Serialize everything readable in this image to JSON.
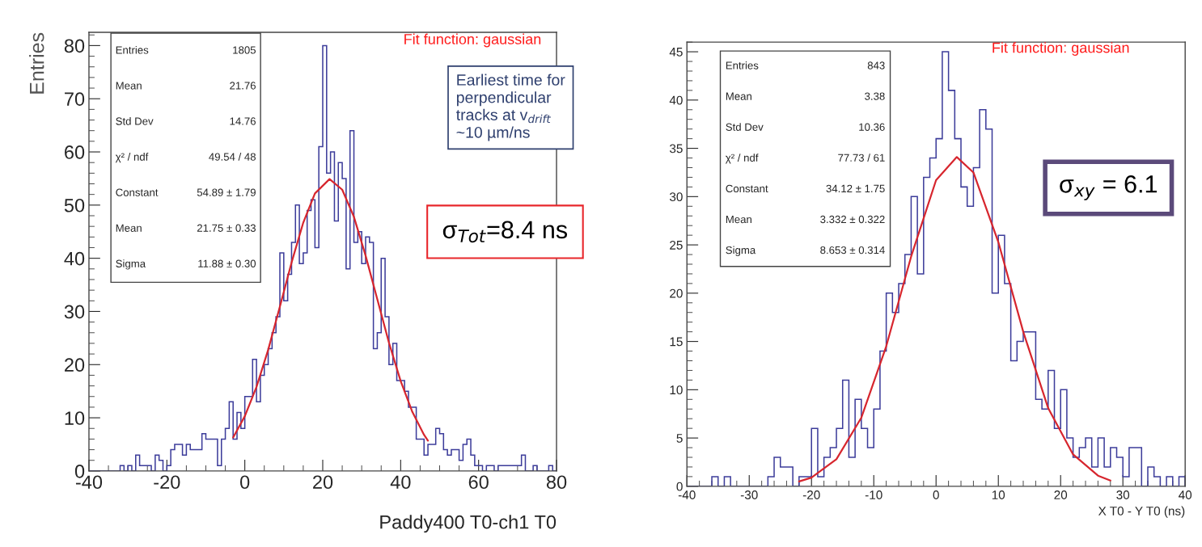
{
  "chart_data": [
    {
      "type": "histogram",
      "ylabel": "Entries",
      "xlabel": "Paddy400 T0-ch1 T0",
      "color": "#3c3c9a",
      "bins": [
        -40,
        -39,
        -38,
        -37,
        -36,
        -35,
        -34,
        -33,
        -32,
        -31,
        -30,
        -29,
        -28,
        -27,
        -26,
        -25,
        -24,
        -23,
        -22,
        -21,
        -20,
        -19,
        -18,
        -17,
        -16,
        -15,
        -14,
        -13,
        -12,
        -11,
        -10,
        -9,
        -8,
        -7,
        -6,
        -5,
        -4,
        -3,
        -2,
        -1,
        0,
        1,
        2,
        3,
        4,
        5,
        6,
        7,
        8,
        9,
        10,
        11,
        12,
        13,
        14,
        15,
        16,
        17,
        18,
        19,
        20,
        21,
        22,
        23,
        24,
        25,
        26,
        27,
        28,
        29,
        30,
        31,
        32,
        33,
        34,
        35,
        36,
        37,
        38,
        39,
        40,
        41,
        42,
        43,
        44,
        45,
        46,
        47,
        48,
        49,
        50,
        51,
        52,
        53,
        54,
        55,
        56,
        57,
        58,
        59,
        60,
        61,
        62,
        63,
        64,
        65,
        66,
        67,
        68,
        69,
        70,
        71,
        72,
        73,
        74,
        75,
        76,
        77,
        78,
        79,
        80
      ],
      "values": [
        0,
        0,
        0,
        0,
        0,
        0,
        0,
        0,
        1,
        0,
        1,
        0,
        3,
        1,
        1,
        1,
        0,
        3,
        2,
        0,
        1,
        4,
        5,
        5,
        3,
        5,
        4,
        4,
        4,
        7,
        6,
        6,
        6,
        1,
        6,
        8,
        13,
        6,
        11,
        8,
        14,
        14,
        21,
        13,
        18,
        20,
        23,
        26,
        29,
        41,
        32,
        37,
        43,
        50,
        39,
        41,
        49,
        51,
        42,
        61,
        80,
        56,
        60,
        47,
        58,
        55,
        38,
        64,
        43,
        45,
        39,
        44,
        43,
        23,
        26,
        40,
        29,
        20,
        24,
        17,
        17,
        15,
        12,
        12,
        6,
        6,
        3,
        5,
        5,
        8,
        7,
        4,
        3,
        4,
        4,
        2,
        5,
        6,
        3,
        1,
        1,
        0,
        1,
        1,
        0,
        1,
        1,
        1,
        1,
        1,
        1,
        3,
        0,
        0,
        1,
        0,
        0,
        0,
        1,
        0
      ],
      "series": [
        {
          "type": "line",
          "color": "#d7262e",
          "x": [
            -3,
            0,
            3,
            6,
            9,
            12,
            15,
            18,
            21.75,
            25,
            28,
            31,
            34,
            37,
            40,
            43,
            46,
            47
          ],
          "values": [
            6.3,
            10.3,
            15.8,
            22.8,
            30.9,
            39.2,
            46.7,
            52.2,
            54.9,
            52.9,
            47.8,
            40.5,
            32.3,
            24.1,
            16.9,
            11.1,
            6.8,
            5.7
          ]
        }
      ],
      "xlim": [
        -40,
        80
      ],
      "ylim": [
        0,
        82.5
      ],
      "xticks": [
        -40,
        -20,
        0,
        20,
        40,
        60,
        80
      ],
      "yticks": [
        0,
        10,
        20,
        30,
        40,
        50,
        60,
        70,
        80
      ],
      "grid": false,
      "annotations": [
        "Fit function: gaussian",
        "Entries",
        "1805",
        "Mean",
        "21.76",
        "Std Dev",
        "14.76",
        "χ² / ndf",
        "49.54 / 48",
        "Constant",
        "54.89 ± 1.79",
        "Mean",
        "21.75 ± 0.33",
        "Sigma",
        "11.88 ± 0.30",
        "Earliest time for\nperpendicular\ntracks at v$_{drift}$\n~10 µm/ns",
        "σ$_{Tot}$=8.4 ns"
      ]
    },
    {
      "type": "histogram",
      "xlabel": "X T0 - Y T0 (ns)",
      "color": "#3c3c9a",
      "bins": [
        -40,
        -39,
        -38,
        -37,
        -36,
        -35,
        -34,
        -33,
        -32,
        -31,
        -30,
        -29,
        -28,
        -27,
        -26,
        -25,
        -24,
        -23,
        -22,
        -21,
        -20,
        -19,
        -18,
        -17,
        -16,
        -15,
        -14,
        -13,
        -12,
        -11,
        -10,
        -9,
        -8,
        -7,
        -6,
        -5,
        -4,
        -3,
        -2,
        -1,
        0,
        1,
        2,
        3,
        4,
        5,
        6,
        7,
        8,
        9,
        10,
        11,
        12,
        13,
        14,
        15,
        16,
        17,
        18,
        19,
        20,
        21,
        22,
        23,
        24,
        25,
        26,
        27,
        28,
        29,
        30,
        31,
        32,
        33,
        34,
        35,
        36,
        37,
        38,
        39,
        40
      ],
      "values": [
        0,
        0,
        0,
        0,
        1,
        0,
        1,
        0,
        0,
        0,
        0,
        0,
        0,
        1,
        3,
        2,
        2,
        0,
        1,
        1,
        6,
        1,
        3,
        4,
        6,
        11,
        3,
        9,
        6,
        4,
        8,
        14,
        20,
        18,
        21,
        24,
        30,
        22,
        32,
        34,
        36,
        45,
        41,
        36,
        31,
        29,
        33,
        39,
        37,
        20,
        26,
        21,
        13,
        15,
        16,
        16,
        9,
        8,
        12,
        6,
        10,
        5,
        3,
        4,
        5,
        2,
        5,
        2,
        4,
        3,
        1,
        4,
        4,
        0,
        2,
        1,
        0,
        1,
        0,
        1
      ],
      "series": [
        {
          "type": "line",
          "color": "#d7262e",
          "x": [
            -22,
            -20,
            -16,
            -12,
            -8,
            -4,
            0,
            3.332,
            6,
            10,
            14,
            18,
            22,
            26,
            28
          ],
          "values": [
            0.5,
            0.9,
            2.8,
            7.1,
            14.5,
            23.8,
            31.7,
            34.1,
            32.5,
            25.3,
            16.0,
            8.1,
            3.3,
            1.1,
            0.6
          ]
        }
      ],
      "xlim": [
        -40,
        40
      ],
      "ylim": [
        0,
        46
      ],
      "xticks": [
        -40,
        -30,
        -20,
        -10,
        0,
        10,
        20,
        30,
        40
      ],
      "yticks": [
        0,
        5,
        10,
        15,
        20,
        25,
        30,
        35,
        40,
        45
      ],
      "grid": false,
      "annotations": [
        "Fit function: gaussian",
        "Entries",
        "843",
        "Mean",
        "3.38",
        "Std Dev",
        "10.36",
        "χ² / ndf",
        "77.73 / 61",
        "Constant",
        "34.12 ± 1.75",
        "Mean",
        "3.332 ± 0.322",
        "Sigma",
        "8.653 ± 0.314",
        "σ$_{xy}$ = 6.1"
      ]
    }
  ]
}
